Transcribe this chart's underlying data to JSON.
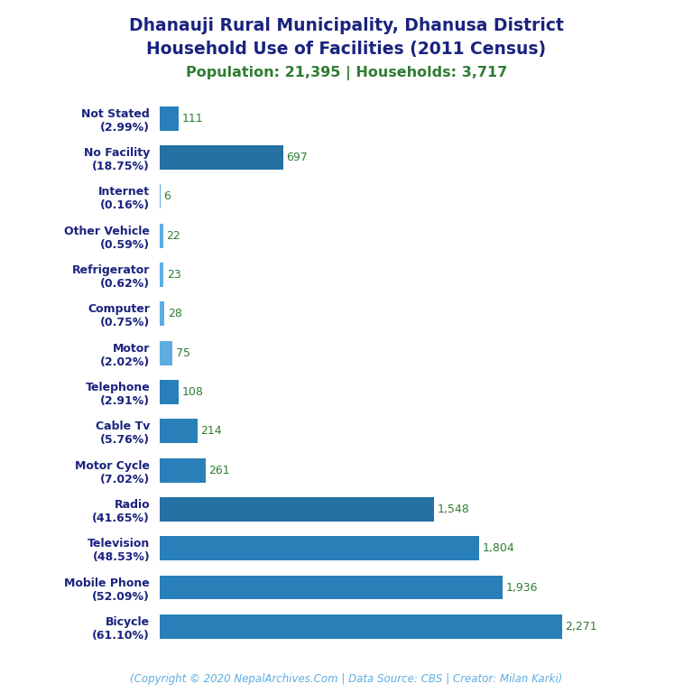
{
  "title_line1": "Dhanauji Rural Municipality, Dhanusa District",
  "title_line2": "Household Use of Facilities (2011 Census)",
  "subtitle": "Population: 21,395 | Households: 3,717",
  "footer": "(Copyright © 2020 NepalArchives.Com | Data Source: CBS | Creator: Milan Karki)",
  "categories": [
    "Bicycle\n(61.10%)",
    "Mobile Phone\n(52.09%)",
    "Television\n(48.53%)",
    "Radio\n(41.65%)",
    "Motor Cycle\n(7.02%)",
    "Cable Tv\n(5.76%)",
    "Telephone\n(2.91%)",
    "Motor\n(2.02%)",
    "Computer\n(0.75%)",
    "Refrigerator\n(0.62%)",
    "Other Vehicle\n(0.59%)",
    "Internet\n(0.16%)",
    "No Facility\n(18.75%)",
    "Not Stated\n(2.99%)"
  ],
  "values": [
    2271,
    1936,
    1804,
    1548,
    261,
    214,
    108,
    75,
    28,
    23,
    22,
    6,
    697,
    111
  ],
  "value_labels": [
    "2,271",
    "1,936",
    "1,804",
    "1,548",
    "261",
    "214",
    "108",
    "75",
    "28",
    "23",
    "22",
    "6",
    "697",
    "111"
  ],
  "bar_colors": [
    "#2980B9",
    "#2980B9",
    "#2980B9",
    "#2471A3",
    "#2980B9",
    "#2980B9",
    "#2980B9",
    "#5DADE2",
    "#5DADE2",
    "#5DADE2",
    "#5DADE2",
    "#5DADE2",
    "#2471A3",
    "#2980B9"
  ],
  "title_color": "#1a237e",
  "subtitle_color": "#2e7d32",
  "value_color": "#2e7d32",
  "footer_color": "#5DADE2",
  "background_color": "#ffffff",
  "title_fontsize": 13.5,
  "subtitle_fontsize": 11.5,
  "label_fontsize": 9,
  "value_fontsize": 9,
  "footer_fontsize": 8.5
}
